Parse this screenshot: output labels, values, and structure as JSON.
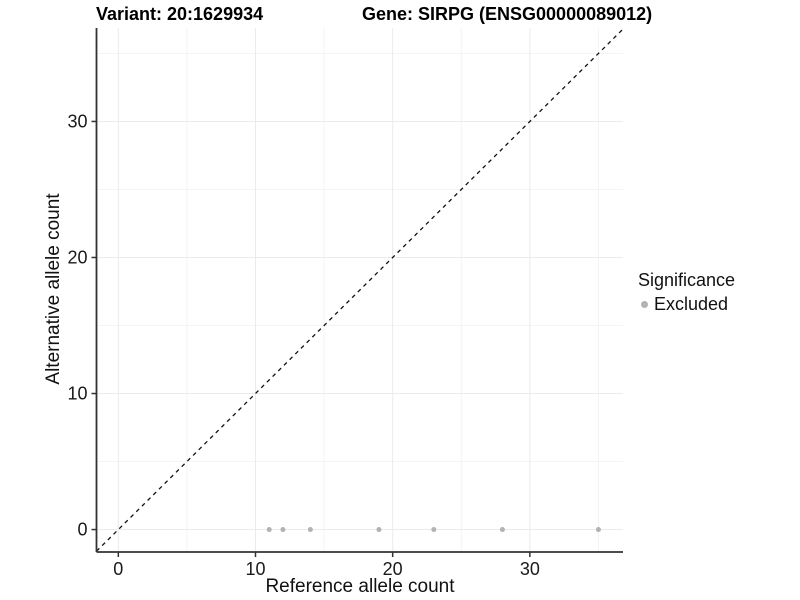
{
  "titles": {
    "variant": "Variant: 20:1629934",
    "gene": "Gene: SIRPG (ENSG00000089012)"
  },
  "axes": {
    "x_label": "Reference allele count",
    "y_label": "Alternative allele count"
  },
  "legend": {
    "title": "Significance",
    "items": [
      {
        "label": "Excluded",
        "color": "#b3b3b3"
      }
    ]
  },
  "chart_data": {
    "type": "scatter",
    "title_left": "Variant: 20:1629934",
    "title_right": "Gene: SIRPG (ENSG00000089012)",
    "xlabel": "Reference allele count",
    "ylabel": "Alternative allele count",
    "xlim": [
      -1.59,
      36.79
    ],
    "ylim": [
      -1.65,
      36.87
    ],
    "x_ticks": [
      0,
      10,
      20,
      30
    ],
    "y_ticks": [
      0,
      10,
      20,
      30
    ],
    "x_minor_ticks": [
      5,
      15,
      25,
      35
    ],
    "y_minor_ticks": [
      5,
      15,
      25,
      35
    ],
    "grid": true,
    "legend_position": "right",
    "series": [
      {
        "name": "Excluded",
        "color": "#b3b3b3",
        "points": [
          {
            "x": 11,
            "y": 0
          },
          {
            "x": 12,
            "y": 0
          },
          {
            "x": 14,
            "y": 0
          },
          {
            "x": 19,
            "y": 0
          },
          {
            "x": 23,
            "y": 0
          },
          {
            "x": 28,
            "y": 0
          },
          {
            "x": 35,
            "y": 0
          }
        ]
      }
    ],
    "reference_line": {
      "type": "abline",
      "slope": 1,
      "intercept": 0,
      "style": "dashed",
      "color": "#111111"
    },
    "colors": {
      "major_grid": "#ebebeb",
      "minor_grid": "#f4f4f4",
      "axis_line": "#333333",
      "tick_text": "#1a1a1a"
    }
  }
}
